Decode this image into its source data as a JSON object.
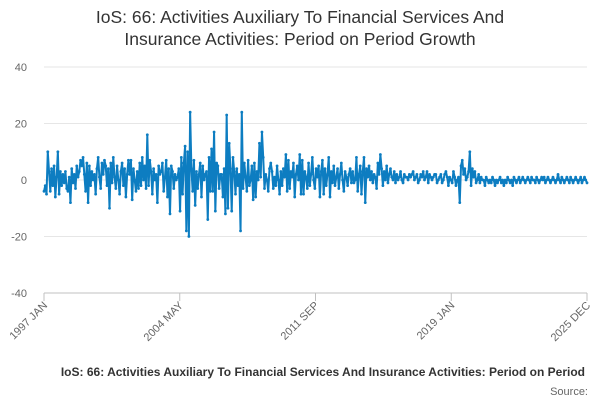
{
  "chart_data": {
    "type": "line",
    "title_line1": "IoS: 66: Activities Auxiliary To Financial Services And",
    "title_line2": "Insurance Activities: Period on Period Growth",
    "xlabel": "",
    "ylabel": "",
    "ylim": [
      -40,
      40
    ],
    "y_ticks": [
      40,
      20,
      0,
      -20,
      -40
    ],
    "x_ticks": [
      "1997 JAN",
      "2004 MAY",
      "2011 SEP",
      "2019 JAN",
      "2025 DEC"
    ],
    "grid": true,
    "legend_position": "bottom",
    "series": [
      {
        "name": "IoS: 66: Activities Auxiliary To Financial Services And Insurance Activities: Period on Period Growth",
        "color": "#0d7dc1",
        "values": [
          -4,
          -2,
          -5,
          10,
          3,
          -4,
          4,
          -2,
          5,
          -6,
          1,
          10,
          -5,
          3,
          -2,
          2,
          -1,
          3,
          -3,
          -4,
          1,
          -8,
          4,
          -1,
          2,
          -3,
          5,
          1,
          3,
          7,
          5,
          8,
          2,
          -4,
          6,
          -8,
          5,
          -2,
          3,
          0,
          2,
          -5,
          4,
          8,
          1,
          -3,
          6,
          2,
          7,
          5,
          -2,
          4,
          -10,
          6,
          -1,
          8,
          1,
          -3,
          5,
          0,
          -5,
          3,
          6,
          -2,
          4,
          -6,
          2,
          7,
          2,
          7,
          -7,
          4,
          0,
          -4,
          3,
          -3,
          6,
          -2,
          8,
          0,
          5,
          -3,
          16,
          -2,
          7,
          3,
          -5,
          4,
          0,
          2,
          -8,
          5,
          2,
          3,
          6,
          -4,
          1,
          7,
          -6,
          4,
          -12,
          5,
          3,
          -3,
          2,
          0,
          1,
          4,
          -11,
          8,
          -5,
          6,
          12,
          -18,
          10,
          -20,
          24,
          4,
          -4,
          7,
          -9,
          3,
          -3,
          2,
          6,
          -6,
          5,
          0,
          2,
          3,
          -14,
          8,
          -4,
          11,
          -4,
          17,
          -11,
          6,
          5,
          -3,
          2,
          2,
          -6,
          4,
          -12,
          23,
          -10,
          13,
          4,
          -11,
          8,
          3,
          -5,
          4,
          -2,
          2,
          -18,
          24,
          -3,
          6,
          1,
          -4,
          7,
          -2,
          0,
          5,
          -7,
          6,
          -6,
          3,
          0,
          13,
          1,
          17,
          8,
          -3,
          2,
          0,
          -4,
          4,
          6,
          3,
          -3,
          1,
          -2,
          5,
          0,
          -5,
          3,
          -2,
          4,
          1,
          9,
          -4,
          7,
          -3,
          3,
          1,
          6,
          -6,
          2,
          5,
          0,
          9,
          -5,
          7,
          -5,
          3,
          1,
          -3,
          6,
          -2,
          2,
          8,
          0,
          -3,
          4,
          1,
          5,
          -6,
          3,
          7,
          -5,
          4,
          -2,
          2,
          8,
          -6,
          3,
          -1,
          5,
          -2,
          1,
          4,
          -3,
          2,
          6,
          0,
          -4,
          3,
          1,
          -2,
          2,
          4,
          -1,
          3,
          -1,
          0,
          8,
          -4,
          2,
          5,
          -5,
          3,
          8,
          -8,
          4,
          1,
          5,
          0,
          3,
          -1,
          2,
          1,
          -3,
          6,
          2,
          9,
          4,
          -2,
          3,
          0,
          5,
          -1,
          2,
          4,
          1,
          0,
          3,
          -1,
          2,
          0,
          1,
          3,
          0,
          -1,
          2,
          1,
          1,
          0,
          2,
          1,
          2,
          3,
          0,
          1,
          2,
          -1,
          0,
          2,
          1,
          3,
          0,
          1,
          3,
          -1,
          2,
          1,
          0,
          1,
          2,
          2,
          -1,
          0,
          1,
          2,
          -1,
          0,
          2,
          3,
          1,
          -2,
          1,
          0,
          -1,
          3,
          1,
          -2,
          0,
          1,
          -8,
          5,
          7,
          2,
          4,
          0,
          1,
          3,
          10,
          -2,
          4,
          1,
          3,
          -1,
          0,
          2,
          -1,
          1,
          0,
          0,
          -2,
          1,
          0,
          -1,
          0,
          -1,
          1,
          0,
          -2,
          0,
          -1,
          0,
          1,
          -1,
          0,
          -2,
          0,
          -1,
          1,
          0,
          -1,
          0,
          -2,
          1,
          0,
          -1,
          0,
          1,
          -1,
          0,
          1,
          0,
          -1,
          0,
          1,
          0,
          -1,
          1,
          0,
          0,
          -1,
          1,
          0,
          -1,
          0,
          1,
          0,
          1,
          -1,
          0,
          1,
          0,
          -1,
          0,
          1,
          0,
          -1,
          0,
          2,
          0,
          -1,
          1,
          0,
          -1,
          0,
          1,
          0,
          -1,
          1,
          0,
          -1,
          0,
          1,
          0,
          -1,
          0,
          1,
          -1,
          0,
          1,
          0,
          -1
        ]
      }
    ],
    "legend_text": "IoS: 66: Activities Auxiliary To Financial Services And Insurance Activities: Period on Period",
    "source_text": "Source:"
  }
}
